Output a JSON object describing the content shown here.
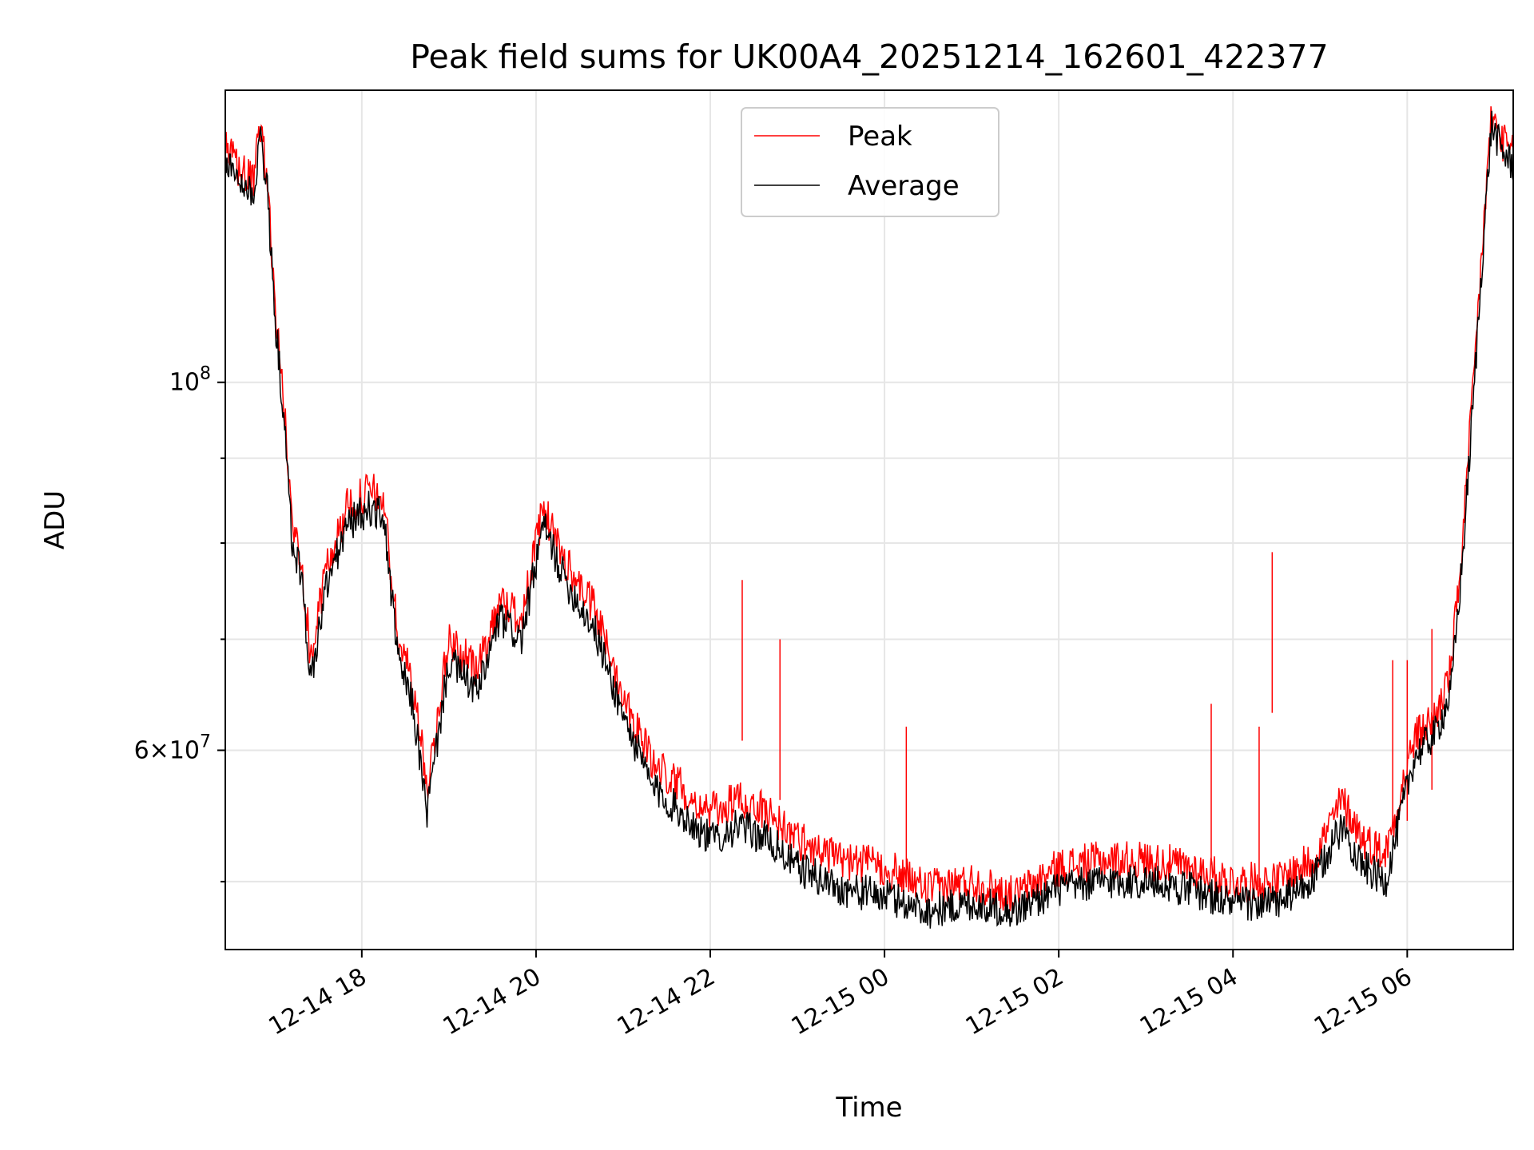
{
  "chart_data": {
    "type": "line",
    "title": "Peak field sums for UK00A4_20251214_162601_422377",
    "xlabel": "Time",
    "ylabel": "ADU",
    "yscale": "log",
    "ylim": [
      45500000,
      150000000
    ],
    "xlim": [
      "2025-12-14 16:26",
      "2025-12-15 07:13"
    ],
    "grid": true,
    "legend": "upper center",
    "x_ticks": [
      {
        "t": "2025-12-14 18:00",
        "label": "12-14 18"
      },
      {
        "t": "2025-12-14 20:00",
        "label": "12-14 20"
      },
      {
        "t": "2025-12-14 22:00",
        "label": "12-14 22"
      },
      {
        "t": "2025-12-15 00:00",
        "label": "12-15 00"
      },
      {
        "t": "2025-12-15 02:00",
        "label": "12-15 02"
      },
      {
        "t": "2025-12-15 04:00",
        "label": "12-15 04"
      },
      {
        "t": "2025-12-15 06:00",
        "label": "12-15 06"
      }
    ],
    "y_ticks": [
      {
        "v": 100000000,
        "base": "10",
        "exp": "8"
      },
      {
        "v": 60000000,
        "mant": "6",
        "base": "10",
        "exp": "7"
      }
    ],
    "y_minor_ticks": [
      50000000,
      70000000,
      80000000,
      90000000
    ],
    "series": [
      {
        "name": "Peak",
        "color": "#ff0000",
        "x": [
          "2025-12-14 16:26",
          "2025-12-14 16:40",
          "2025-12-14 16:46",
          "2025-12-14 16:50",
          "2025-12-14 16:55",
          "2025-12-14 17:00",
          "2025-12-14 17:06",
          "2025-12-14 17:12",
          "2025-12-14 17:18",
          "2025-12-14 17:25",
          "2025-12-14 17:35",
          "2025-12-14 17:50",
          "2025-12-14 18:05",
          "2025-12-14 18:15",
          "2025-12-14 18:25",
          "2025-12-14 18:35",
          "2025-12-14 18:45",
          "2025-12-14 19:00",
          "2025-12-14 19:20",
          "2025-12-14 19:35",
          "2025-12-14 19:50",
          "2025-12-14 20:05",
          "2025-12-14 20:20",
          "2025-12-14 20:40",
          "2025-12-14 21:00",
          "2025-12-14 21:20",
          "2025-12-14 21:40",
          "2025-12-14 22:00",
          "2025-12-14 22:20",
          "2025-12-14 22:40",
          "2025-12-14 23:00",
          "2025-12-14 23:30",
          "2025-12-15 00:00",
          "2025-12-15 00:30",
          "2025-12-15 01:00",
          "2025-12-15 01:30",
          "2025-12-15 02:00",
          "2025-12-15 02:30",
          "2025-12-15 03:00",
          "2025-12-15 03:30",
          "2025-12-15 04:00",
          "2025-12-15 04:30",
          "2025-12-15 04:55",
          "2025-12-15 05:15",
          "2025-12-15 05:30",
          "2025-12-15 05:45",
          "2025-12-15 06:05",
          "2025-12-15 06:20",
          "2025-12-15 06:30",
          "2025-12-15 06:38",
          "2025-12-15 06:45",
          "2025-12-15 06:52",
          "2025-12-15 06:58",
          "2025-12-15 07:05",
          "2025-12-15 07:13"
        ],
        "values": [
          138000000,
          133000000,
          132000000,
          144000000,
          132000000,
          112000000,
          98000000,
          82000000,
          79000000,
          68000000,
          77000000,
          84000000,
          86000000,
          85000000,
          70000000,
          66000000,
          57000000,
          70000000,
          67000000,
          74000000,
          72000000,
          84000000,
          78000000,
          73000000,
          65000000,
          59000000,
          57000000,
          55000000,
          56000000,
          55000000,
          53000000,
          51500000,
          51000000,
          49500000,
          50000000,
          49000000,
          51000000,
          51500000,
          51500000,
          51000000,
          50000000,
          50000000,
          51500000,
          56000000,
          53000000,
          52000000,
          61000000,
          63000000,
          67000000,
          80000000,
          98000000,
          122000000,
          145000000,
          140000000,
          137000000
        ],
        "spikes": [
          {
            "x": "2025-12-14 22:22",
            "value": 76000000
          },
          {
            "x": "2025-12-14 22:48",
            "value": 70000000
          },
          {
            "x": "2025-12-15 00:15",
            "value": 62000000
          },
          {
            "x": "2025-12-15 03:45",
            "value": 64000000
          },
          {
            "x": "2025-12-15 04:27",
            "value": 79000000
          },
          {
            "x": "2025-12-15 04:18",
            "value": 62000000
          },
          {
            "x": "2025-12-15 05:50",
            "value": 68000000
          },
          {
            "x": "2025-12-15 06:00",
            "value": 68000000
          },
          {
            "x": "2025-12-15 06:17",
            "value": 71000000
          }
        ]
      },
      {
        "name": "Average",
        "color": "#000000",
        "x": [
          "2025-12-14 16:26",
          "2025-12-14 16:40",
          "2025-12-14 16:46",
          "2025-12-14 16:50",
          "2025-12-14 16:55",
          "2025-12-14 17:00",
          "2025-12-14 17:06",
          "2025-12-14 17:12",
          "2025-12-14 17:18",
          "2025-12-14 17:25",
          "2025-12-14 17:35",
          "2025-12-14 17:50",
          "2025-12-14 18:05",
          "2025-12-14 18:15",
          "2025-12-14 18:25",
          "2025-12-14 18:35",
          "2025-12-14 18:45",
          "2025-12-14 19:00",
          "2025-12-14 19:20",
          "2025-12-14 19:35",
          "2025-12-14 19:50",
          "2025-12-14 20:05",
          "2025-12-14 20:20",
          "2025-12-14 20:40",
          "2025-12-14 21:00",
          "2025-12-14 21:20",
          "2025-12-14 21:40",
          "2025-12-14 22:00",
          "2025-12-14 22:20",
          "2025-12-14 22:40",
          "2025-12-14 23:00",
          "2025-12-14 23:30",
          "2025-12-15 00:00",
          "2025-12-15 00:30",
          "2025-12-15 01:00",
          "2025-12-15 01:30",
          "2025-12-15 02:00",
          "2025-12-15 02:30",
          "2025-12-15 03:00",
          "2025-12-15 03:30",
          "2025-12-15 04:00",
          "2025-12-15 04:30",
          "2025-12-15 04:55",
          "2025-12-15 05:15",
          "2025-12-15 05:30",
          "2025-12-15 05:45",
          "2025-12-15 06:05",
          "2025-12-15 06:20",
          "2025-12-15 06:30",
          "2025-12-15 06:38",
          "2025-12-15 06:45",
          "2025-12-15 06:52",
          "2025-12-15 06:58",
          "2025-12-15 07:05",
          "2025-12-15 07:13"
        ],
        "values": [
          136000000,
          131000000,
          130000000,
          142000000,
          130000000,
          110000000,
          96000000,
          80000000,
          77000000,
          66000000,
          75000000,
          82000000,
          84000000,
          83000000,
          68000000,
          64000000,
          55000000,
          68000000,
          65000000,
          72000000,
          70000000,
          82000000,
          76000000,
          71000000,
          63000000,
          57000000,
          55000000,
          53000000,
          54000000,
          53000000,
          51000000,
          49500000,
          49000000,
          48000000,
          48500000,
          48000000,
          49500000,
          50000000,
          50000000,
          49500000,
          48500000,
          48500000,
          50000000,
          54000000,
          51000000,
          50000000,
          59500000,
          61500000,
          65000000,
          78000000,
          96000000,
          120000000,
          143000000,
          138000000,
          135000000
        ]
      }
    ]
  }
}
